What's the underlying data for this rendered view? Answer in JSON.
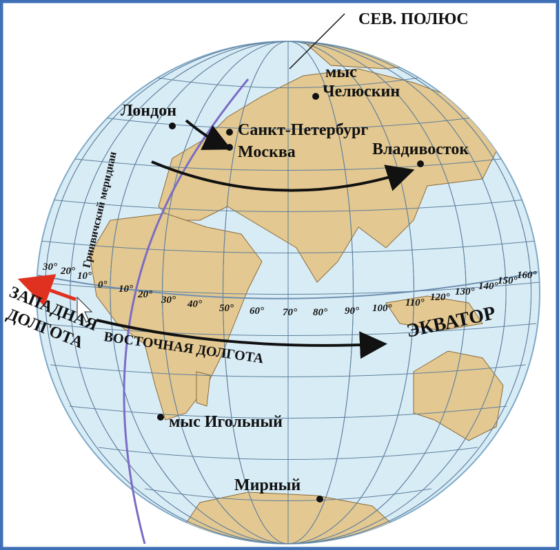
{
  "labels": {
    "north_pole": "СЕВ. ПОЛЮС",
    "chelyuskin": [
      "мыс",
      "Челюскин"
    ],
    "london": "Лондон",
    "spb": "Санкт-Петербург",
    "moscow": "Москва",
    "vladivostok": "Владивосток",
    "greenwich": "Гринвичский меридиан",
    "west": [
      "ЗАПАДНАЯ",
      "ДОЛГОТА"
    ],
    "east": "ВОСТОЧНАЯ ДОЛГОТА",
    "equator": "ЭКВАТОР",
    "agulhas": "мыс Игольный",
    "mirny": "Мирный"
  },
  "degrees": [
    "30°",
    "20°",
    "10°",
    "0°",
    "10°",
    "20°",
    "30°",
    "40°",
    "50°",
    "60°",
    "70°",
    "80°",
    "90°",
    "100°",
    "110°",
    "120°",
    "130°",
    "140°",
    "150°",
    "160°"
  ]
}
